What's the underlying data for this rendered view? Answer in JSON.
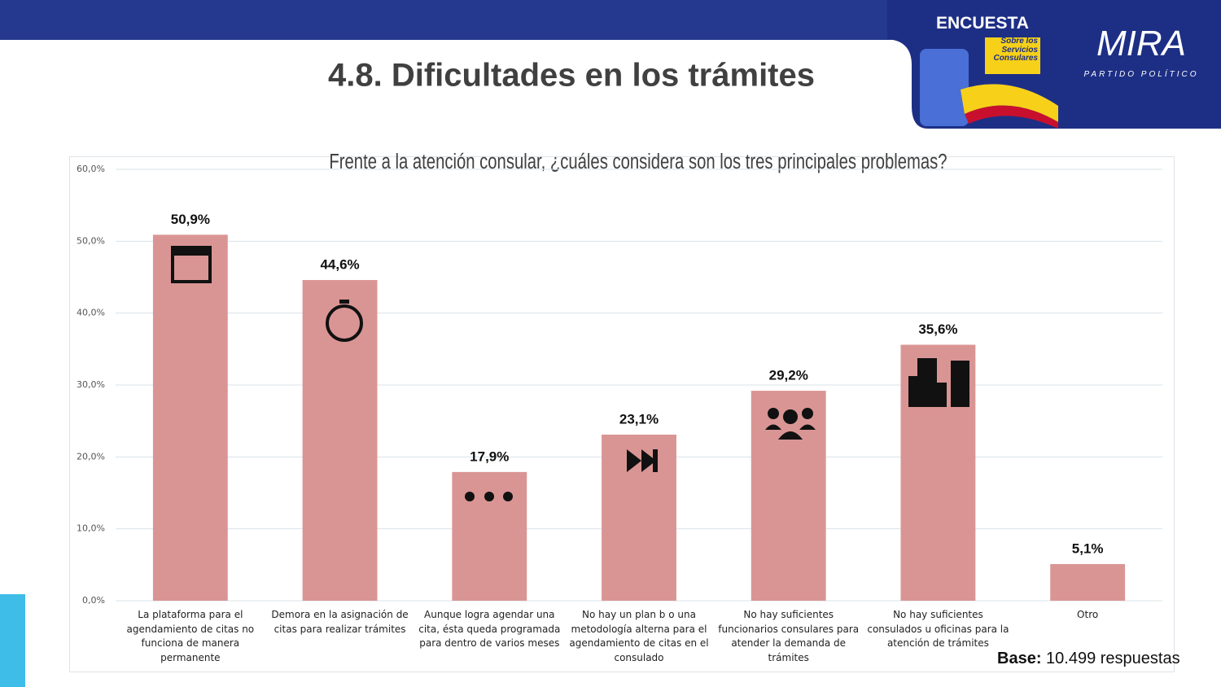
{
  "header": {
    "badge": "ENCUESTA",
    "badge_sub": "Sobre los Servicios Consulares",
    "brand": "MIRA",
    "brand_sub": "PARTIDO POLÍTICO"
  },
  "title": "4.8. Dificultades en los trámites",
  "chart_data": {
    "type": "bar",
    "title": "Frente a la atención consular, ¿cuáles considera son los tres principales problemas?",
    "categories": [
      "La plataforma para el agendamiento de citas no funciona de manera permanente",
      "Demora en la asignación de citas para realizar trámites",
      "Aunque logra agendar una cita, ésta queda programada para dentro de varios meses",
      "No hay un plan b o una metodología alterna para el agendamiento de citas en el consulado",
      "No hay suficientes funcionarios consulares para atender la demanda de trámites",
      "No hay suficientes consulados u oficinas para la atención de trámites",
      "Otro"
    ],
    "values": [
      50.9,
      44.6,
      17.9,
      23.1,
      29.2,
      35.6,
      5.1
    ],
    "value_labels": [
      "50,9%",
      "44,6%",
      "17,9%",
      "23,1%",
      "29,2%",
      "35,6%",
      "5,1%"
    ],
    "color": "#d99594",
    "ylim": [
      0,
      60
    ],
    "yticks": [
      {
        "value": 0,
        "label": "0,0%"
      },
      {
        "value": 10,
        "label": "10,0%"
      },
      {
        "value": 20,
        "label": "20,0%"
      },
      {
        "value": 30,
        "label": "30,0%"
      },
      {
        "value": 40,
        "label": "40,0%"
      },
      {
        "value": 50,
        "label": "50,0%"
      },
      {
        "value": 60,
        "label": "60,0%"
      }
    ],
    "grid": true
  },
  "footer": {
    "base_label": "Base:",
    "base_value": "10.499 respuestas"
  }
}
